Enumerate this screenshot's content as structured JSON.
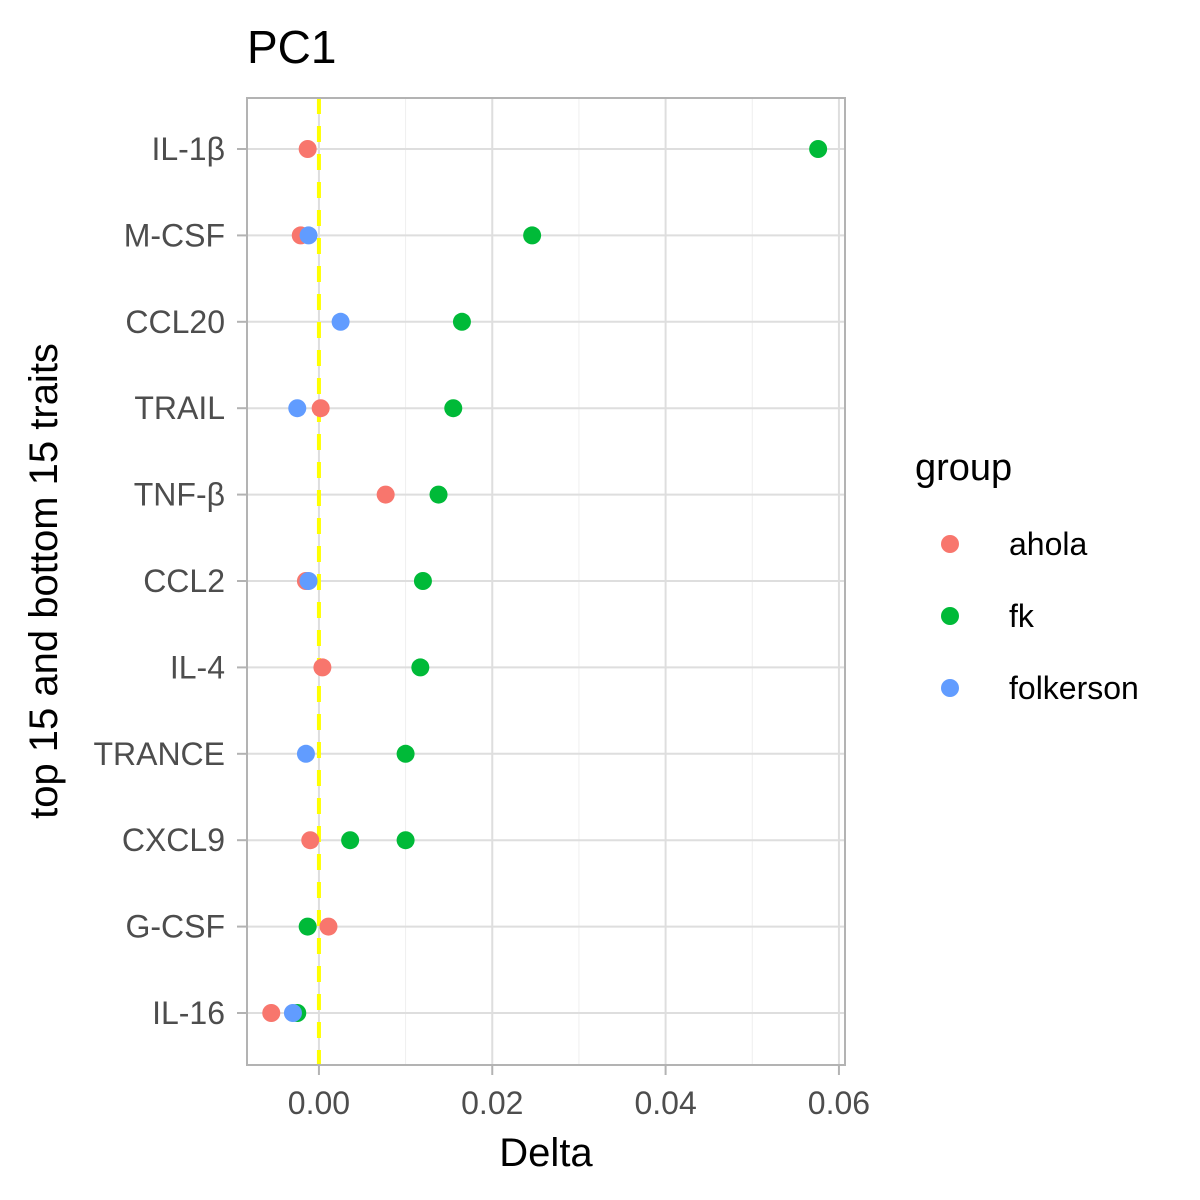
{
  "chart_data": {
    "type": "scatter",
    "title": "PC1",
    "xlabel": "Delta",
    "ylabel": "top 15 and bottom 15 traits",
    "xlim": [
      -0.0083,
      0.0607
    ],
    "x_ticks": [
      0.0,
      0.02,
      0.04,
      0.06
    ],
    "x_tick_labels": [
      "0.00",
      "0.02",
      "0.04",
      "0.06"
    ],
    "categories": [
      "IL-1β",
      "M-CSF",
      "CCL20",
      "TRAIL",
      "TNF-β",
      "CCL2",
      "IL-4",
      "TRANCE",
      "CXCL9",
      "G-CSF",
      "IL-16"
    ],
    "reference_line": {
      "x": 0,
      "color": "#ffff00",
      "style": "dashed"
    },
    "grid": true,
    "legend": {
      "title": "group",
      "position": "right"
    },
    "series": [
      {
        "name": "ahola",
        "color": "#f8766d",
        "points": [
          {
            "y": "IL-1β",
            "x": -0.0013
          },
          {
            "y": "M-CSF",
            "x": -0.0021
          },
          {
            "y": "TRAIL",
            "x": 0.0002
          },
          {
            "y": "TNF-β",
            "x": 0.0077
          },
          {
            "y": "CCL2",
            "x": -0.0015
          },
          {
            "y": "IL-4",
            "x": 0.0004
          },
          {
            "y": "CXCL9",
            "x": -0.001
          },
          {
            "y": "G-CSF",
            "x": 0.0011
          },
          {
            "y": "IL-16",
            "x": -0.0055
          }
        ]
      },
      {
        "name": "fk",
        "color": "#00ba38",
        "points": [
          {
            "y": "IL-1β",
            "x": 0.0576
          },
          {
            "y": "M-CSF",
            "x": 0.0246
          },
          {
            "y": "CCL20",
            "x": 0.0165
          },
          {
            "y": "TRAIL",
            "x": 0.0155
          },
          {
            "y": "TNF-β",
            "x": 0.0138
          },
          {
            "y": "CCL2",
            "x": 0.012
          },
          {
            "y": "IL-4",
            "x": 0.0117
          },
          {
            "y": "TRANCE",
            "x": 0.01
          },
          {
            "y": "CXCL9",
            "x": 0.0036
          },
          {
            "y": "CXCL9",
            "x": 0.01
          },
          {
            "y": "G-CSF",
            "x": -0.0013
          },
          {
            "y": "IL-16",
            "x": -0.0025
          }
        ]
      },
      {
        "name": "folkerson",
        "color": "#619cff",
        "points": [
          {
            "y": "M-CSF",
            "x": -0.0012
          },
          {
            "y": "CCL20",
            "x": 0.0025
          },
          {
            "y": "TRAIL",
            "x": -0.0025
          },
          {
            "y": "CCL2",
            "x": -0.0012
          },
          {
            "y": "TRANCE",
            "x": -0.0015
          },
          {
            "y": "IL-16",
            "x": -0.003
          }
        ]
      }
    ]
  }
}
